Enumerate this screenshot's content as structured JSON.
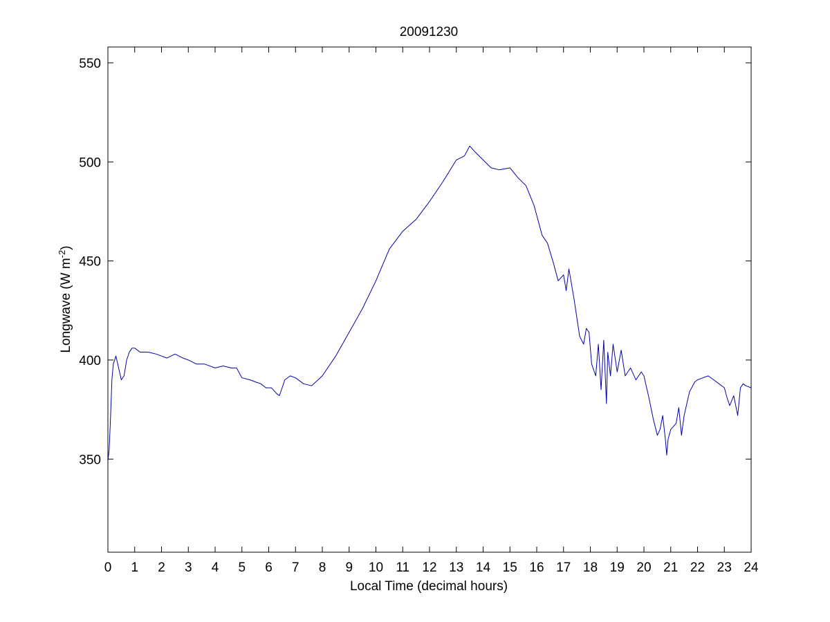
{
  "chart_data": {
    "type": "line",
    "title": "20091230",
    "xlabel": "Local Time (decimal hours)",
    "ylabel_parts": {
      "base": "Longwave (W m",
      "sup": "-2",
      "end": ")"
    },
    "xlim": [
      0,
      24
    ],
    "ylim": [
      303,
      558
    ],
    "xticks": [
      0,
      1,
      2,
      3,
      4,
      5,
      6,
      7,
      8,
      9,
      10,
      11,
      12,
      13,
      14,
      15,
      16,
      17,
      18,
      19,
      20,
      21,
      22,
      23,
      24
    ],
    "yticks": [
      350,
      400,
      450,
      500,
      550
    ],
    "grid": false,
    "line_color": "#0000aa",
    "series": [
      {
        "x": [
          0.0,
          0.05,
          0.1,
          0.15,
          0.2,
          0.3,
          0.4,
          0.5,
          0.6,
          0.7,
          0.8,
          0.9,
          1.0,
          1.2,
          1.5,
          1.8,
          2.0,
          2.2,
          2.5,
          2.8,
          3.0,
          3.3,
          3.6,
          4.0,
          4.3,
          4.6,
          4.8,
          5.0,
          5.3,
          5.5,
          5.7,
          5.9,
          6.1,
          6.3,
          6.4,
          6.5,
          6.6,
          6.8,
          7.0,
          7.3,
          7.6,
          8.0,
          8.5,
          9.0,
          9.5,
          10.0,
          10.5,
          11.0,
          11.5,
          12.0,
          12.5,
          13.0,
          13.3,
          13.5,
          13.7,
          14.0,
          14.3,
          14.6,
          15.0,
          15.3,
          15.6,
          15.9,
          16.2,
          16.4,
          16.6,
          16.8,
          17.0,
          17.1,
          17.2,
          17.4,
          17.6,
          17.75,
          17.85,
          17.95,
          18.05,
          18.2,
          18.3,
          18.4,
          18.5,
          18.6,
          18.65,
          18.75,
          18.85,
          19.0,
          19.15,
          19.3,
          19.5,
          19.7,
          19.9,
          20.0,
          20.2,
          20.35,
          20.5,
          20.6,
          20.7,
          20.8,
          20.85,
          20.9,
          21.0,
          21.2,
          21.3,
          21.4,
          21.5,
          21.6,
          21.7,
          21.9,
          22.0,
          22.2,
          22.4,
          22.6,
          22.8,
          23.0,
          23.1,
          23.2,
          23.35,
          23.5,
          23.6,
          23.7,
          23.8,
          24.0
        ],
        "y": [
          349,
          355,
          372,
          390,
          398,
          402,
          396,
          390,
          392,
          400,
          404,
          406,
          406,
          404,
          404,
          403,
          402,
          401,
          403,
          401,
          400,
          398,
          398,
          396,
          397,
          396,
          396,
          391,
          390,
          389,
          388,
          386,
          386,
          383,
          382,
          386,
          390,
          392,
          391,
          388,
          387,
          392,
          402,
          414,
          426,
          440,
          456,
          465,
          471,
          480,
          490,
          501,
          503,
          508,
          505,
          501,
          497,
          496,
          497,
          492,
          488,
          478,
          463,
          459,
          450,
          440,
          443,
          435,
          446,
          430,
          412,
          408,
          416,
          414,
          398,
          392,
          408,
          385,
          410,
          378,
          404,
          392,
          408,
          394,
          405,
          392,
          396,
          390,
          394,
          392,
          380,
          370,
          362,
          365,
          372,
          360,
          352,
          360,
          365,
          368,
          376,
          362,
          372,
          378,
          384,
          389,
          390,
          391,
          392,
          390,
          388,
          386,
          381,
          377,
          382,
          372,
          386,
          388,
          387,
          386
        ]
      }
    ]
  }
}
